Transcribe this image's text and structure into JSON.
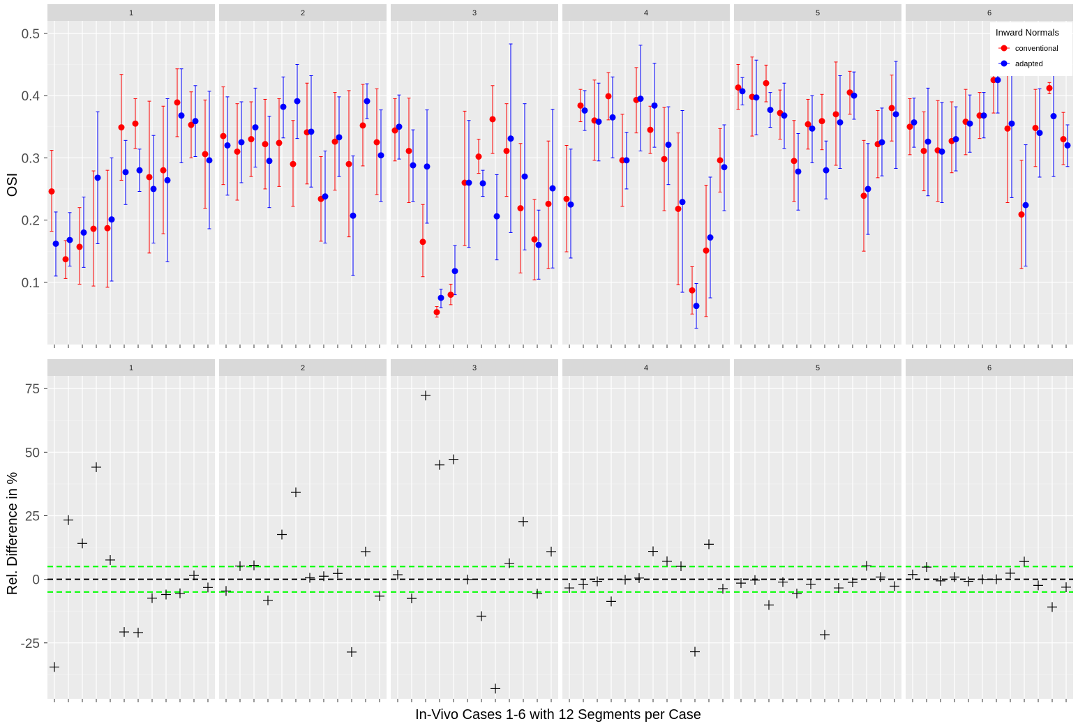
{
  "chart_data": [
    {
      "type": "scatter",
      "subtype": "point-errorbar",
      "ylabel": "OSI",
      "ylim": [
        0.0,
        0.52
      ],
      "yticks": [
        "0.1",
        "0.2",
        "0.3",
        "0.4",
        "0.5"
      ],
      "yticks_values": [
        0.1,
        0.2,
        0.3,
        0.4,
        0.5
      ],
      "legend": {
        "title": "Inward Normals",
        "placement": "top-right",
        "entries": [
          {
            "name": "conventional",
            "color": "#ff0000"
          },
          {
            "name": "adapted",
            "color": "#0000ff"
          }
        ]
      },
      "panels": [
        {
          "label": "1",
          "conventional": [
            0.246,
            0.137,
            0.157,
            0.186,
            0.187,
            0.349,
            0.355,
            0.269,
            0.28,
            0.389,
            0.353,
            0.306
          ],
          "conv_low": [
            0.182,
            0.106,
            0.097,
            0.094,
            0.092,
            0.264,
            0.315,
            0.147,
            0.178,
            0.334,
            0.3,
            0.219
          ],
          "conv_high": [
            0.312,
            0.167,
            0.22,
            0.279,
            0.28,
            0.434,
            0.395,
            0.391,
            0.383,
            0.443,
            0.406,
            0.393
          ],
          "adapted": [
            0.162,
            0.168,
            0.18,
            0.268,
            0.201,
            0.277,
            0.28,
            0.25,
            0.264,
            0.368,
            0.359,
            0.296
          ],
          "adap_low": [
            0.11,
            0.126,
            0.124,
            0.162,
            0.102,
            0.225,
            0.246,
            0.163,
            0.133,
            0.292,
            0.302,
            0.186
          ],
          "adap_high": [
            0.213,
            0.212,
            0.237,
            0.374,
            0.3,
            0.328,
            0.314,
            0.336,
            0.395,
            0.443,
            0.416,
            0.407
          ]
        },
        {
          "label": "2",
          "conventional": [
            0.335,
            0.31,
            0.33,
            0.322,
            0.324,
            0.29,
            0.341,
            0.234,
            0.326,
            0.29,
            0.352,
            0.325
          ],
          "conv_low": [
            0.257,
            0.232,
            0.27,
            0.25,
            0.254,
            0.222,
            0.258,
            0.166,
            0.248,
            0.173,
            0.287,
            0.241
          ],
          "conv_high": [
            0.414,
            0.387,
            0.39,
            0.394,
            0.395,
            0.36,
            0.42,
            0.302,
            0.405,
            0.408,
            0.418,
            0.411
          ],
          "adapted": [
            0.32,
            0.325,
            0.349,
            0.295,
            0.382,
            0.391,
            0.342,
            0.238,
            0.333,
            0.207,
            0.391,
            0.304
          ],
          "adap_low": [
            0.24,
            0.26,
            0.285,
            0.22,
            0.332,
            0.331,
            0.253,
            0.163,
            0.27,
            0.111,
            0.363,
            0.23
          ],
          "adap_high": [
            0.398,
            0.39,
            0.412,
            0.367,
            0.43,
            0.45,
            0.432,
            0.311,
            0.398,
            0.303,
            0.419,
            0.377
          ]
        },
        {
          "label": "3",
          "conventional": [
            0.344,
            0.311,
            0.165,
            0.052,
            0.08,
            0.26,
            0.302,
            0.362,
            0.311,
            0.219,
            0.169,
            0.226
          ],
          "conv_low": [
            0.295,
            0.228,
            0.109,
            0.044,
            0.064,
            0.159,
            0.275,
            0.307,
            0.238,
            0.115,
            0.104,
            0.122
          ],
          "conv_high": [
            0.395,
            0.396,
            0.225,
            0.061,
            0.097,
            0.375,
            0.33,
            0.416,
            0.387,
            0.323,
            0.233,
            0.327
          ],
          "adapted": [
            0.35,
            0.288,
            0.286,
            0.075,
            0.118,
            0.26,
            0.259,
            0.206,
            0.331,
            0.27,
            0.16,
            0.251
          ],
          "adap_low": [
            0.298,
            0.23,
            0.195,
            0.059,
            0.08,
            0.156,
            0.238,
            0.136,
            0.18,
            0.152,
            0.105,
            0.123
          ],
          "adap_high": [
            0.401,
            0.345,
            0.377,
            0.089,
            0.159,
            0.36,
            0.28,
            0.273,
            0.483,
            0.387,
            0.216,
            0.378
          ]
        },
        {
          "label": "4",
          "conventional": [
            0.234,
            0.384,
            0.36,
            0.399,
            0.296,
            0.393,
            0.345,
            0.298,
            0.218,
            0.087,
            0.151,
            0.296
          ],
          "conv_low": [
            0.149,
            0.358,
            0.296,
            0.361,
            0.222,
            0.34,
            0.307,
            0.215,
            0.096,
            0.049,
            0.045,
            0.245
          ],
          "conv_high": [
            0.32,
            0.41,
            0.425,
            0.437,
            0.37,
            0.445,
            0.383,
            0.381,
            0.34,
            0.125,
            0.256,
            0.347
          ],
          "adapted": [
            0.225,
            0.376,
            0.358,
            0.365,
            0.296,
            0.395,
            0.384,
            0.321,
            0.229,
            0.062,
            0.172,
            0.285
          ],
          "adap_low": [
            0.139,
            0.344,
            0.295,
            0.3,
            0.25,
            0.311,
            0.317,
            0.257,
            0.084,
            0.026,
            0.075,
            0.215
          ],
          "adap_high": [
            0.314,
            0.408,
            0.42,
            0.43,
            0.341,
            0.481,
            0.452,
            0.382,
            0.376,
            0.098,
            0.269,
            0.353
          ]
        },
        {
          "label": "5",
          "conventional": [
            0.413,
            0.398,
            0.42,
            0.372,
            0.295,
            0.354,
            0.359,
            0.37,
            0.405,
            0.239,
            0.322,
            0.38
          ],
          "conv_low": [
            0.378,
            0.335,
            0.39,
            0.33,
            0.23,
            0.314,
            0.313,
            0.288,
            0.37,
            0.15,
            0.268,
            0.327
          ],
          "conv_high": [
            0.45,
            0.462,
            0.449,
            0.409,
            0.36,
            0.394,
            0.402,
            0.454,
            0.439,
            0.328,
            0.376,
            0.433
          ],
          "adapted": [
            0.407,
            0.397,
            0.377,
            0.368,
            0.278,
            0.347,
            0.28,
            0.357,
            0.4,
            0.25,
            0.325,
            0.37
          ],
          "adap_low": [
            0.385,
            0.337,
            0.349,
            0.315,
            0.216,
            0.292,
            0.234,
            0.283,
            0.362,
            0.177,
            0.271,
            0.283
          ],
          "adap_high": [
            0.429,
            0.457,
            0.405,
            0.42,
            0.339,
            0.4,
            0.327,
            0.432,
            0.438,
            0.323,
            0.38,
            0.455
          ]
        },
        {
          "label": "6",
          "conventional": [
            0.35,
            0.311,
            0.312,
            0.327,
            0.358,
            0.368,
            0.425,
            0.347,
            0.209,
            0.348,
            0.412,
            0.33
          ],
          "conv_low": [
            0.305,
            0.247,
            0.23,
            0.276,
            0.305,
            0.331,
            0.372,
            0.228,
            0.122,
            0.286,
            0.403,
            0.289
          ],
          "conv_high": [
            0.395,
            0.374,
            0.392,
            0.39,
            0.41,
            0.405,
            0.478,
            0.465,
            0.296,
            0.41,
            0.421,
            0.373
          ],
          "adapted": [
            0.357,
            0.326,
            0.31,
            0.33,
            0.355,
            0.368,
            0.425,
            0.355,
            0.224,
            0.34,
            0.367,
            0.32
          ],
          "adap_low": [
            0.317,
            0.239,
            0.228,
            0.279,
            0.309,
            0.332,
            0.372,
            0.236,
            0.126,
            0.269,
            0.27,
            0.286
          ],
          "adap_high": [
            0.396,
            0.412,
            0.389,
            0.382,
            0.401,
            0.405,
            0.478,
            0.473,
            0.321,
            0.411,
            0.464,
            0.353
          ]
        }
      ]
    },
    {
      "type": "scatter",
      "subtype": "cross-markers",
      "ylabel": "Rel. Difference in %",
      "xlabel": "In-Vivo Cases 1-6 with 12 Segments per Case",
      "ylim": [
        -47,
        80
      ],
      "yticks": [
        "-25",
        "0",
        "25",
        "50",
        "75"
      ],
      "yticks_values": [
        -25,
        0,
        25,
        50,
        75
      ],
      "reference_lines": [
        {
          "value": 0,
          "color": "#000000",
          "style": "dashed"
        },
        {
          "value": 5,
          "color": "#00ff00",
          "style": "dashed"
        },
        {
          "value": -5,
          "color": "#00ff00",
          "style": "dashed"
        }
      ],
      "panels": [
        {
          "label": "1",
          "values": [
            -34.5,
            23.3,
            14.1,
            44.1,
            7.6,
            -20.7,
            -21.0,
            -7.4,
            -6.0,
            -5.5,
            1.5,
            -3.2
          ]
        },
        {
          "label": "2",
          "values": [
            -4.6,
            5.2,
            5.5,
            -8.3,
            17.6,
            34.2,
            0.6,
            1.2,
            2.3,
            -28.6,
            10.9,
            -6.6
          ]
        },
        {
          "label": "3",
          "values": [
            1.8,
            -7.5,
            72.3,
            45.0,
            47.2,
            -0.1,
            -14.5,
            -43.0,
            6.3,
            22.7,
            -5.7,
            10.9
          ]
        },
        {
          "label": "4",
          "values": [
            -3.4,
            -2.1,
            -0.8,
            -8.7,
            -0.2,
            0.5,
            11.0,
            7.1,
            5.1,
            -28.5,
            13.8,
            -3.7
          ]
        },
        {
          "label": "5",
          "values": [
            -1.5,
            -0.3,
            -10.1,
            -1.1,
            -5.6,
            -2.0,
            -21.8,
            -3.4,
            -1.2,
            5.3,
            0.9,
            -2.7
          ]
        },
        {
          "label": "6",
          "values": [
            1.9,
            4.8,
            -0.6,
            0.9,
            -0.8,
            0.0,
            0.0,
            2.4,
            7.0,
            -2.4,
            -10.9,
            -3.1
          ]
        }
      ]
    }
  ]
}
